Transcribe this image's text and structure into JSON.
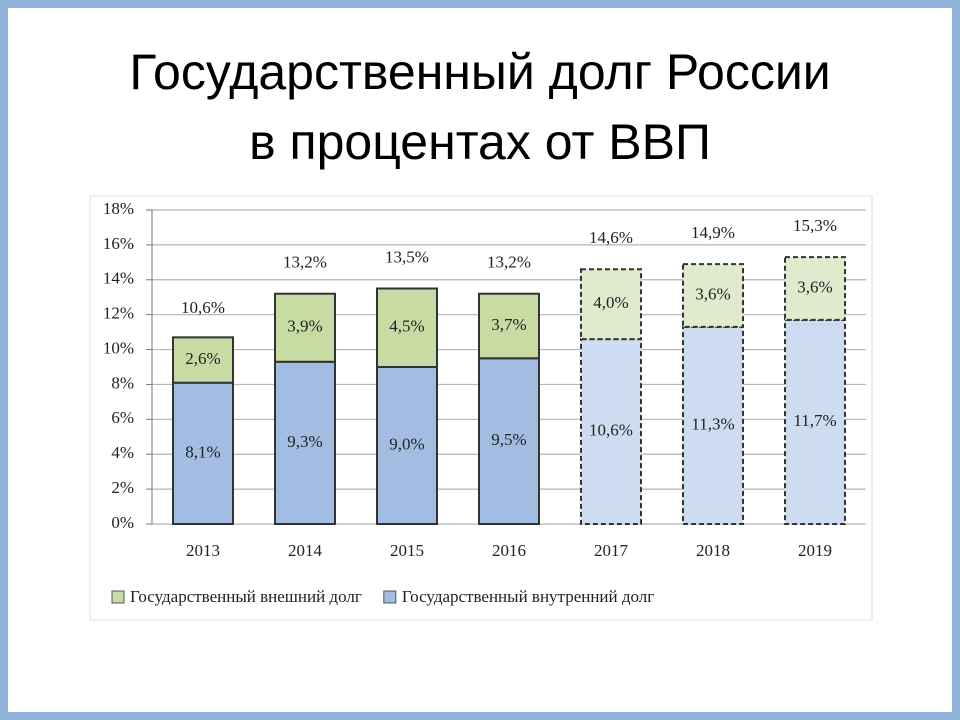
{
  "chart_data": {
    "type": "stacked_bar",
    "title": [
      "Государственный долг России",
      "в процентах от ВВП"
    ],
    "categories": [
      "2013",
      "2014",
      "2015",
      "2016",
      "2017",
      "2018",
      "2019"
    ],
    "forecast": [
      false,
      false,
      false,
      false,
      true,
      true,
      true
    ],
    "series": [
      {
        "name": "Государственный внутренний долг",
        "color": "#a3bde2",
        "forecast_color": "#cddcf0",
        "values": [
          8.1,
          9.3,
          9.0,
          9.5,
          10.6,
          11.3,
          11.7
        ],
        "value_labels": [
          "8,1%",
          "9,3%",
          "9,0%",
          "9,5%",
          "10,6%",
          "11,3%",
          "11,7%"
        ]
      },
      {
        "name": "Государственный внешний долг",
        "color": "#c6dca3",
        "forecast_color": "#dfebcc",
        "values": [
          2.6,
          3.9,
          4.5,
          3.7,
          4.0,
          3.6,
          3.6
        ],
        "value_labels": [
          "2,6%",
          "3,9%",
          "4,5%",
          "3,7%",
          "4,0%",
          "3,6%",
          "3,6%"
        ]
      }
    ],
    "totals": [
      10.6,
      13.2,
      13.5,
      13.2,
      14.6,
      14.9,
      15.3
    ],
    "total_labels": [
      "10,6%",
      "13,2%",
      "13,5%",
      "13,2%",
      "14,6%",
      "14,9%",
      "15,3%"
    ],
    "ylim": [
      0,
      18
    ],
    "yticks": [
      {
        "value": 0,
        "label": "0%"
      },
      {
        "value": 2,
        "label": "2%"
      },
      {
        "value": 4,
        "label": "4%"
      },
      {
        "value": 6,
        "label": "6%"
      },
      {
        "value": 8,
        "label": "8%"
      },
      {
        "value": 10,
        "label": "10%"
      },
      {
        "value": 12,
        "label": "12%"
      },
      {
        "value": 14,
        "label": "14%"
      },
      {
        "value": 16,
        "label": "16%"
      },
      {
        "value": 18,
        "label": "18%"
      }
    ],
    "grid": true
  }
}
